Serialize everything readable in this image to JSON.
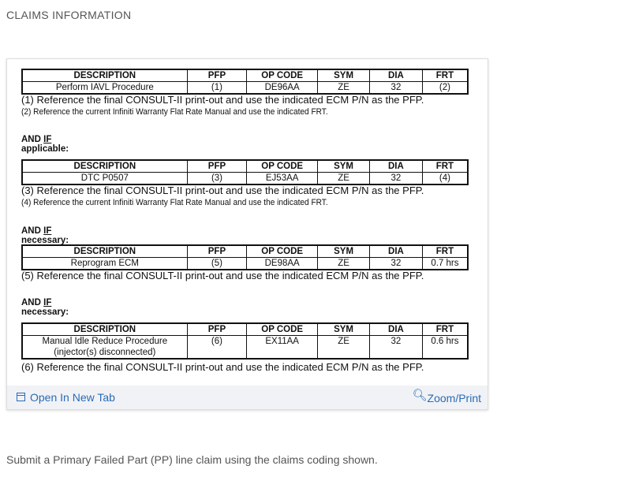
{
  "heading": "CLAIMS INFORMATION",
  "columns": [
    "DESCRIPTION",
    "PFP",
    "OP CODE",
    "SYM",
    "DIA",
    "FRT"
  ],
  "sections": [
    {
      "label": null,
      "row": [
        "Perform IAVL Procedure",
        "(1)",
        "DE96AA",
        "ZE",
        "32",
        "(2)"
      ],
      "notes": [
        "(1) Reference the final CONSULT-II print-out and use the indicated ECM P/N as the PFP.",
        "(2) Reference the current Infiniti Warranty Flat Rate Manual and use the indicated FRT."
      ]
    },
    {
      "label_pre": "AND ",
      "label_u": "IF",
      "label_post": " applicable:",
      "row": [
        "DTC P0507",
        "(3)",
        "EJ53AA",
        "ZE",
        "32",
        "(4)"
      ],
      "notes": [
        "(3) Reference the final CONSULT-II print-out and use the indicated ECM P/N as the PFP.",
        "(4) Reference the current Infiniti Warranty Flat Rate Manual and use the indicated FRT."
      ]
    },
    {
      "label_pre": "AND ",
      "label_u": "IF",
      "label_post": " necessary:",
      "row": [
        "Reprogram ECM",
        "(5)",
        "DE98AA",
        "ZE",
        "32",
        "0.7 hrs"
      ],
      "notes": [
        "(5) Reference the final CONSULT-II print-out and use the indicated ECM P/N as the PFP."
      ]
    },
    {
      "label_pre": "AND ",
      "label_u": "IF",
      "label_post": " necessary:",
      "row": [
        "Manual Idle Reduce Procedure",
        "(6)",
        "EX11AA",
        "ZE",
        "32",
        "0.6 hrs"
      ],
      "row_desc_line2": "(injector(s) disconnected)",
      "notes": [
        "(6) Reference the final CONSULT-II print-out and use the indicated ECM P/N as the PFP."
      ]
    }
  ],
  "footer": {
    "open_tab": "Open In New Tab",
    "zoom": "Zoom/Print"
  },
  "bottom_text": "Submit a Primary Failed Part (PP) line claim using the claims coding shown.",
  "colors": {
    "link": "#2a6bb5",
    "footer_bg": "#f0f2f6"
  }
}
